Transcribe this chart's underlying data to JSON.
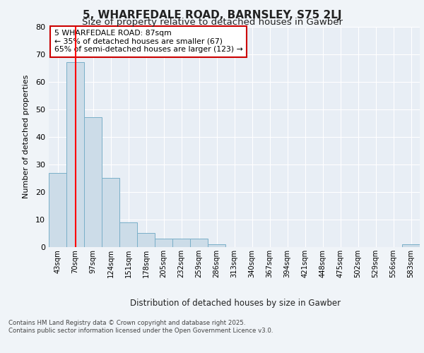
{
  "title1": "5, WHARFEDALE ROAD, BARNSLEY, S75 2LJ",
  "title2": "Size of property relative to detached houses in Gawber",
  "xlabel": "Distribution of detached houses by size in Gawber",
  "ylabel": "Number of detached properties",
  "bar_labels": [
    "43sqm",
    "70sqm",
    "97sqm",
    "124sqm",
    "151sqm",
    "178sqm",
    "205sqm",
    "232sqm",
    "259sqm",
    "286sqm",
    "313sqm",
    "340sqm",
    "367sqm",
    "394sqm",
    "421sqm",
    "448sqm",
    "475sqm",
    "502sqm",
    "529sqm",
    "556sqm",
    "583sqm"
  ],
  "bar_values": [
    27,
    67,
    47,
    25,
    9,
    5,
    3,
    3,
    3,
    1,
    0,
    0,
    0,
    0,
    0,
    0,
    0,
    0,
    0,
    0,
    1
  ],
  "bar_color": "#ccdce8",
  "bar_edge_color": "#7aafc8",
  "red_line_x": 1.0,
  "ylim": [
    0,
    80
  ],
  "yticks": [
    0,
    10,
    20,
    30,
    40,
    50,
    60,
    70,
    80
  ],
  "annotation_text": "5 WHARFEDALE ROAD: 87sqm\n← 35% of detached houses are smaller (67)\n65% of semi-detached houses are larger (123) →",
  "annotation_box_color": "#ffffff",
  "annotation_box_edge": "#cc0000",
  "footer": "Contains HM Land Registry data © Crown copyright and database right 2025.\nContains public sector information licensed under the Open Government Licence v3.0.",
  "bg_color": "#f0f4f8",
  "plot_bg_color": "#e8eef5",
  "grid_color": "#ffffff",
  "title1_fontsize": 11,
  "title2_fontsize": 9.5
}
